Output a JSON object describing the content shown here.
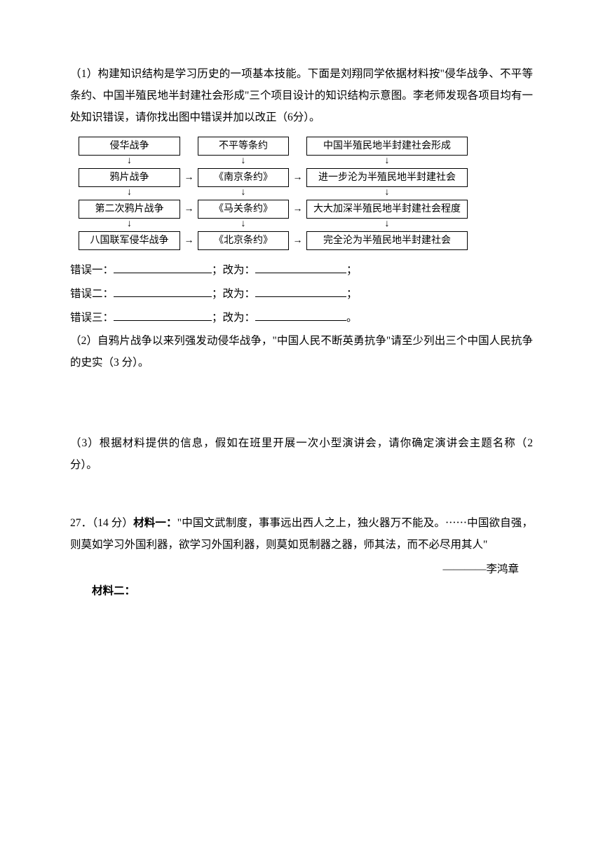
{
  "q1": {
    "text": "（1）构建知识结构是学习历史的一项基本技能。下面是刘翔同学依据材料按\"侵华战争、不平等条约、中国半殖民地半封建社会形成\"三个项目设计的知识结构示意图。李老师发现各项目均有一处知识错误，请你找出图中错误并加以改正（6分）。"
  },
  "diagram": {
    "headers": [
      "侵华战争",
      "不平等条约",
      "中国半殖民地半封建社会形成"
    ],
    "row1": [
      "鸦片战争",
      "《南京条约》",
      "进一步沦为半殖民地半封建社会"
    ],
    "row2": [
      "第二次鸦片战争",
      "《马关条约》",
      "大大加深半殖民地半封建社会程度"
    ],
    "row3": [
      "八国联军侵华战争",
      "《北京条约》",
      "完全沦为半殖民地半封建社会"
    ]
  },
  "errors": {
    "label1": "错误一：",
    "label2": "错误二：",
    "label3": "错误三：",
    "change": "；改为：",
    "semi": "；",
    "period": "。"
  },
  "q2": {
    "text": "（2）自鸦片战争以来列强发动侵华战争，\"中国人民不断英勇抗争\"请至少列出三个中国人民抗争的史实（3 分）。"
  },
  "q3": {
    "text": "（3）根据材料提供的信息，假如在班里开展一次小型演讲会，请你确定演讲会主题名称（2 分）。"
  },
  "q27": {
    "prefix": "27．（14 分）",
    "m1_label": "材料一：",
    "m1_text": "\"中国文武制度，事事远出西人之上，独火器万不能及。⋯⋯中国欲自强，则莫如学习外国利器，欲学习外国利器，则莫如觅制器之器，师其法，而不必尽用其人\"",
    "attribution": "————李鸿章",
    "m2_label": "材料二："
  }
}
